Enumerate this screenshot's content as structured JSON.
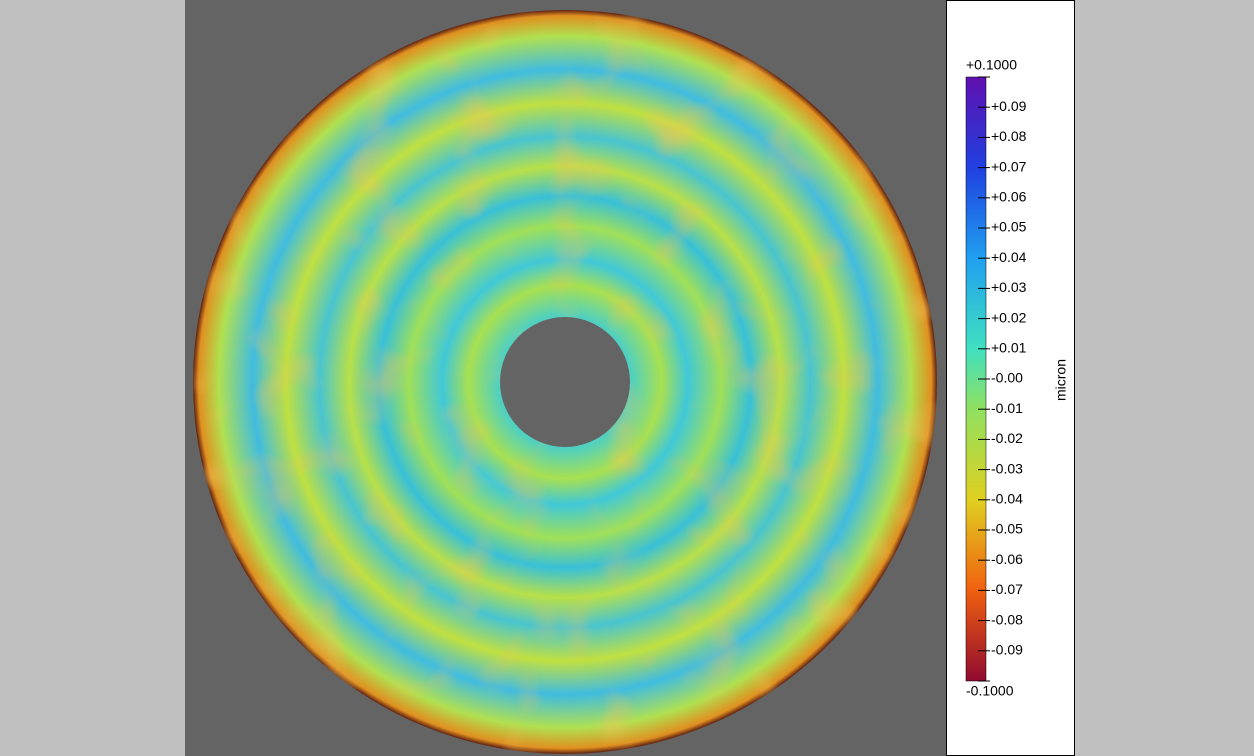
{
  "colorbar": {
    "label": "micron",
    "range": [
      -0.1,
      0.1
    ],
    "ticks": [
      {
        "value": 0.1,
        "label": "+0.1000"
      },
      {
        "value": 0.09,
        "label": "+0.09"
      },
      {
        "value": 0.08,
        "label": "+0.08"
      },
      {
        "value": 0.07,
        "label": "+0.07"
      },
      {
        "value": 0.06,
        "label": "+0.06"
      },
      {
        "value": 0.05,
        "label": "+0.05"
      },
      {
        "value": 0.04,
        "label": "+0.04"
      },
      {
        "value": 0.03,
        "label": "+0.03"
      },
      {
        "value": 0.02,
        "label": "+0.02"
      },
      {
        "value": 0.01,
        "label": "+0.01"
      },
      {
        "value": 0,
        "label": "-0.00"
      },
      {
        "value": -0.01,
        "label": "-0.01"
      },
      {
        "value": -0.02,
        "label": "-0.02"
      },
      {
        "value": -0.03,
        "label": "-0.03"
      },
      {
        "value": -0.04,
        "label": "-0.04"
      },
      {
        "value": -0.05,
        "label": "-0.05"
      },
      {
        "value": -0.06,
        "label": "-0.06"
      },
      {
        "value": -0.07,
        "label": "-0.07"
      },
      {
        "value": -0.08,
        "label": "-0.08"
      },
      {
        "value": -0.09,
        "label": "-0.09"
      },
      {
        "value": -0.1,
        "label": "-0.1000"
      }
    ]
  }
}
